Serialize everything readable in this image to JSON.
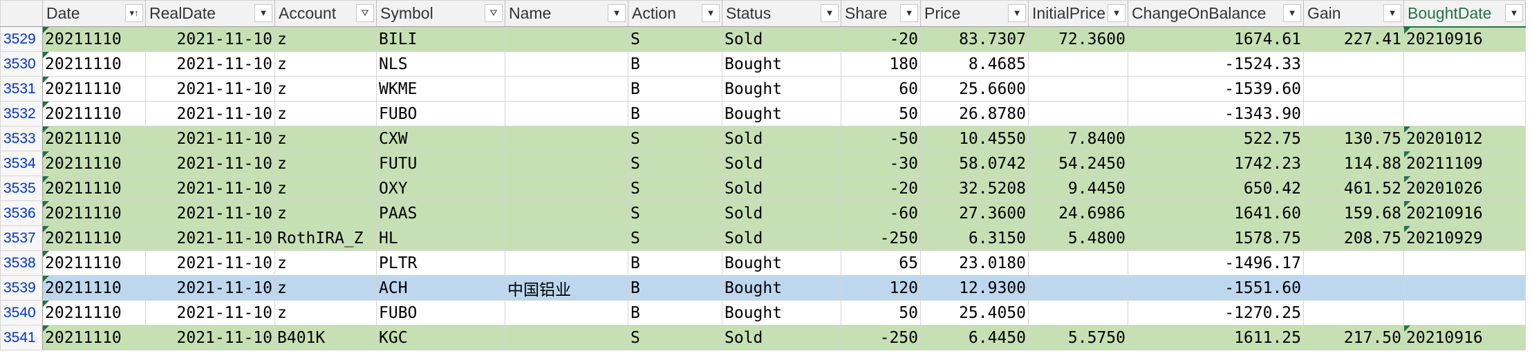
{
  "columns": [
    {
      "label": "Date",
      "filter": "sort-icon"
    },
    {
      "label": "RealDate",
      "filter": "dropdown-icon"
    },
    {
      "label": "Account",
      "filter": "filter-icon"
    },
    {
      "label": "Symbol",
      "filter": "filter-icon"
    },
    {
      "label": "Name",
      "filter": "dropdown-icon"
    },
    {
      "label": "Action",
      "filter": "dropdown-icon"
    },
    {
      "label": "Status",
      "filter": "dropdown-icon"
    },
    {
      "label": "Share",
      "filter": "dropdown-icon"
    },
    {
      "label": "Price",
      "filter": "dropdown-icon"
    },
    {
      "label": "InitialPrice",
      "filter": "dropdown-icon"
    },
    {
      "label": "ChangeOnBalance",
      "filter": "dropdown-icon"
    },
    {
      "label": "Gain",
      "filter": "dropdown-icon"
    },
    {
      "label": "BoughtDate",
      "filter": "dropdown-icon"
    }
  ],
  "rows": [
    {
      "num": "3529",
      "date": "20211110",
      "realdate": "2021-11-10",
      "account": "z",
      "symbol": "BILI",
      "name": "",
      "action": "S",
      "status": "Sold",
      "share": "-20",
      "price": "83.7307",
      "initial": "72.3600",
      "change": "1674.61",
      "gain": "227.41",
      "bought": "20210916",
      "fill": "green"
    },
    {
      "num": "3530",
      "date": "20211110",
      "realdate": "2021-11-10",
      "account": "z",
      "symbol": "NLS",
      "name": "",
      "action": "B",
      "status": "Bought",
      "share": "180",
      "price": "8.4685",
      "initial": "",
      "change": "-1524.33",
      "gain": "",
      "bought": "",
      "fill": "white"
    },
    {
      "num": "3531",
      "date": "20211110",
      "realdate": "2021-11-10",
      "account": "z",
      "symbol": "WKME",
      "name": "",
      "action": "B",
      "status": "Bought",
      "share": "60",
      "price": "25.6600",
      "initial": "",
      "change": "-1539.60",
      "gain": "",
      "bought": "",
      "fill": "white"
    },
    {
      "num": "3532",
      "date": "20211110",
      "realdate": "2021-11-10",
      "account": "z",
      "symbol": "FUBO",
      "name": "",
      "action": "B",
      "status": "Bought",
      "share": "50",
      "price": "26.8780",
      "initial": "",
      "change": "-1343.90",
      "gain": "",
      "bought": "",
      "fill": "white"
    },
    {
      "num": "3533",
      "date": "20211110",
      "realdate": "2021-11-10",
      "account": "z",
      "symbol": "CXW",
      "name": "",
      "action": "S",
      "status": "Sold",
      "share": "-50",
      "price": "10.4550",
      "initial": "7.8400",
      "change": "522.75",
      "gain": "130.75",
      "bought": "20201012",
      "fill": "green"
    },
    {
      "num": "3534",
      "date": "20211110",
      "realdate": "2021-11-10",
      "account": "z",
      "symbol": "FUTU",
      "name": "",
      "action": "S",
      "status": "Sold",
      "share": "-30",
      "price": "58.0742",
      "initial": "54.2450",
      "change": "1742.23",
      "gain": "114.88",
      "bought": "20211109",
      "fill": "green"
    },
    {
      "num": "3535",
      "date": "20211110",
      "realdate": "2021-11-10",
      "account": "z",
      "symbol": "OXY",
      "name": "",
      "action": "S",
      "status": "Sold",
      "share": "-20",
      "price": "32.5208",
      "initial": "9.4450",
      "change": "650.42",
      "gain": "461.52",
      "bought": "20201026",
      "fill": "green"
    },
    {
      "num": "3536",
      "date": "20211110",
      "realdate": "2021-11-10",
      "account": "z",
      "symbol": "PAAS",
      "name": "",
      "action": "S",
      "status": "Sold",
      "share": "-60",
      "price": "27.3600",
      "initial": "24.6986",
      "change": "1641.60",
      "gain": "159.68",
      "bought": "20210916",
      "fill": "green"
    },
    {
      "num": "3537",
      "date": "20211110",
      "realdate": "2021-11-10",
      "account": "RothIRA_Z",
      "symbol": "HL",
      "name": "",
      "action": "S",
      "status": "Sold",
      "share": "-250",
      "price": "6.3150",
      "initial": "5.4800",
      "change": "1578.75",
      "gain": "208.75",
      "bought": "20210929",
      "fill": "green"
    },
    {
      "num": "3538",
      "date": "20211110",
      "realdate": "2021-11-10",
      "account": "z",
      "symbol": "PLTR",
      "name": "",
      "action": "B",
      "status": "Bought",
      "share": "65",
      "price": "23.0180",
      "initial": "",
      "change": "-1496.17",
      "gain": "",
      "bought": "",
      "fill": "white"
    },
    {
      "num": "3539",
      "date": "20211110",
      "realdate": "2021-11-10",
      "account": "z",
      "symbol": "ACH",
      "name": "中国铝业",
      "action": "B",
      "status": "Bought",
      "share": "120",
      "price": "12.9300",
      "initial": "",
      "change": "-1551.60",
      "gain": "",
      "bought": "",
      "fill": "blue"
    },
    {
      "num": "3540",
      "date": "20211110",
      "realdate": "2021-11-10",
      "account": "z",
      "symbol": "FUBO",
      "name": "",
      "action": "B",
      "status": "Bought",
      "share": "50",
      "price": "25.4050",
      "initial": "",
      "change": "-1270.25",
      "gain": "",
      "bought": "",
      "fill": "white"
    },
    {
      "num": "3541",
      "date": "20211110",
      "realdate": "2021-11-10",
      "account": "B401K",
      "symbol": "KGC",
      "name": "",
      "action": "S",
      "status": "Sold",
      "share": "-250",
      "price": "6.4450",
      "initial": "5.5750",
      "change": "1611.25",
      "gain": "217.50",
      "bought": "20210916",
      "fill": "green"
    }
  ],
  "colors": {
    "sold_fill": "#c6e0b4",
    "selected_fill": "#bdd7ee",
    "row_number": "#0033cc",
    "header_active": "#217346"
  }
}
